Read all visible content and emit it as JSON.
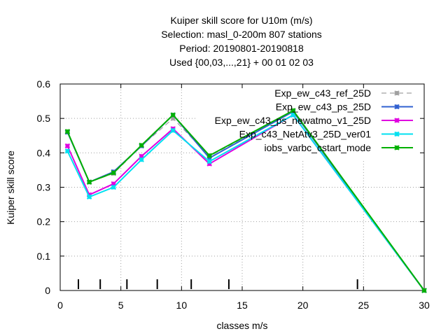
{
  "chart_data": {
    "type": "line",
    "title": [
      "Kuiper skill score  for U10m (m/s)",
      "Selection: masl_0-200m    807 stations",
      "Period: 20190801-20190818",
      "Used {00,03,...,21} + 00 01 02 03"
    ],
    "xlabel": "classes m/s",
    "ylabel": "Kuiper skill score",
    "xlim": [
      0,
      30
    ],
    "ylim": [
      0,
      0.6
    ],
    "xticks": [
      0,
      5,
      10,
      15,
      20,
      25,
      30
    ],
    "yticks": [
      0,
      0.1,
      0.2,
      0.3,
      0.4,
      0.5,
      0.6
    ],
    "xtick_labels": [
      "0",
      "5",
      "10",
      "15",
      "20",
      "25",
      "30"
    ],
    "ytick_labels": [
      "0",
      "0.1",
      "0.2",
      "0.3",
      "0.4",
      "0.5",
      "0.6"
    ],
    "grid": true,
    "legend_position": "top-right",
    "class_bounds": [
      1.5,
      3.3,
      5.5,
      8.0,
      10.8,
      13.9,
      24.5
    ],
    "x": [
      0.6,
      2.4,
      4.4,
      6.7,
      9.3,
      12.3,
      19.2,
      30.0
    ],
    "series": [
      {
        "name": "Exp_ew_c43_ref_25D",
        "color": "#a0a0a0",
        "dash": true,
        "marker": "star",
        "values": [
          0.46,
          0.315,
          0.34,
          0.42,
          0.5,
          0.39,
          0.52,
          0.0
        ]
      },
      {
        "name": "Exp_ew_c43_ps_25D",
        "color": "#3060d0",
        "dash": false,
        "marker": "star",
        "values": [
          0.46,
          0.315,
          0.345,
          0.42,
          0.51,
          0.385,
          0.52,
          0.0
        ]
      },
      {
        "name": "Exp_ew_c43_ps_newatmo_v1_25D",
        "color": "#e000e0",
        "dash": false,
        "marker": "star",
        "values": [
          0.42,
          0.278,
          0.31,
          0.39,
          0.47,
          0.368,
          0.51,
          0.0
        ]
      },
      {
        "name": "Exp_c43_NetAtv3_25D_ver01",
        "color": "#00e0f0",
        "dash": false,
        "marker": "star",
        "values": [
          0.405,
          0.272,
          0.3,
          0.38,
          0.465,
          0.375,
          0.51,
          0.0
        ]
      },
      {
        "name": "iobs_varbc_cstart_mode",
        "color": "#00b000",
        "dash": false,
        "marker": "star",
        "values": [
          0.462,
          0.315,
          0.342,
          0.422,
          0.51,
          0.392,
          0.523,
          0.0
        ]
      }
    ]
  }
}
